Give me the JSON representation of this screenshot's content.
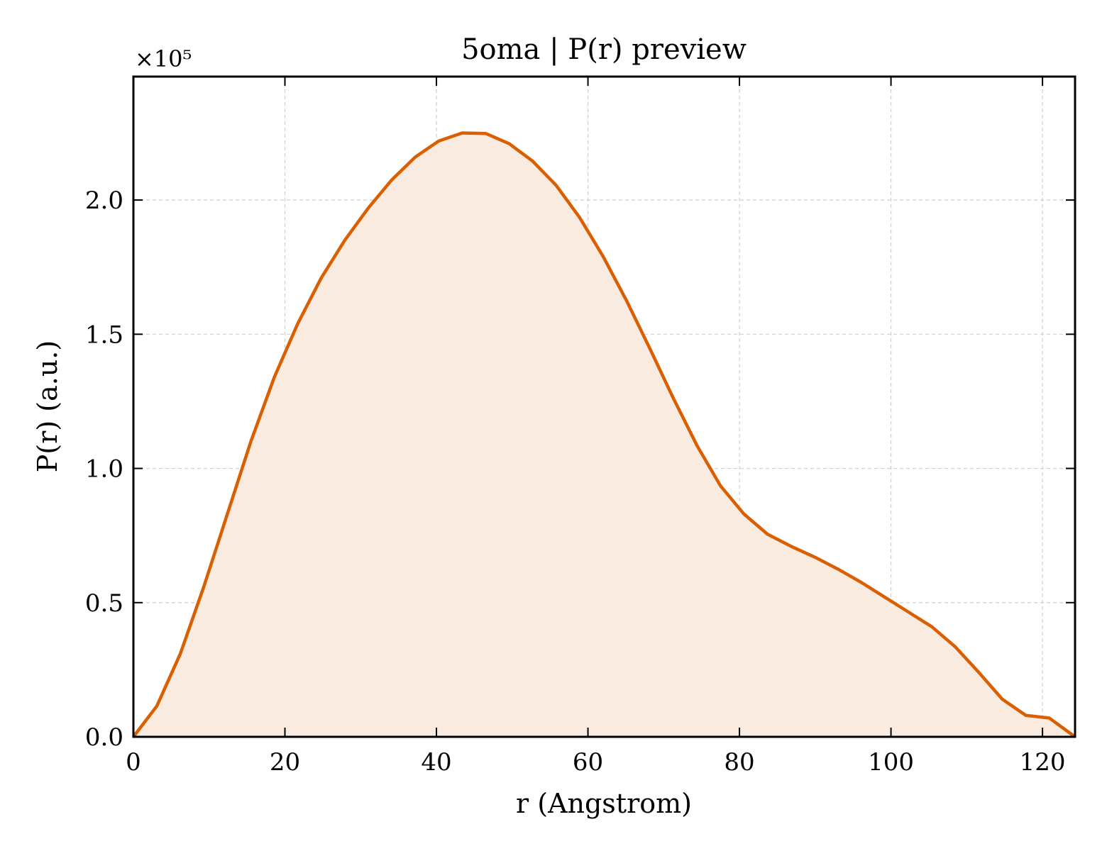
{
  "chart_data": {
    "type": "area",
    "title": "5oma | P(r) preview",
    "xlabel": "r (Angstrom)",
    "ylabel": "P(r) (a.u.)",
    "y_offset_label": "×10⁵",
    "xlim": [
      0,
      124.3
    ],
    "ylim": [
      0,
      2.46
    ],
    "y_scale_factor": 100000,
    "xticks": [
      0,
      20,
      40,
      60,
      80,
      100,
      120
    ],
    "xtick_labels": [
      "0",
      "20",
      "40",
      "60",
      "80",
      "100",
      "120"
    ],
    "yticks": [
      0,
      0.5,
      1.0,
      1.5,
      2.0
    ],
    "ytick_labels": [
      "0.0",
      "0.5",
      "1.0",
      "1.5",
      "2.0"
    ],
    "grid": true,
    "line_color": "#d95f02",
    "fill_color": "#f9ebe0",
    "series": [
      {
        "x": [
          0,
          3.1,
          6.2,
          9.3,
          12.4,
          15.5,
          18.6,
          21.7,
          24.8,
          27.9,
          31.0,
          34.1,
          37.2,
          40.3,
          43.4,
          46.5,
          49.6,
          52.7,
          55.8,
          58.9,
          62.0,
          65.1,
          68.2,
          71.3,
          74.4,
          77.5,
          80.6,
          83.7,
          86.8,
          89.9,
          93.0,
          96.1,
          99.2,
          102.3,
          105.4,
          108.5,
          111.6,
          114.7,
          117.8,
          120.9,
          124.3
        ],
        "y": [
          0.0,
          0.115,
          0.31,
          0.56,
          0.83,
          1.1,
          1.34,
          1.54,
          1.71,
          1.85,
          1.97,
          2.075,
          2.16,
          2.22,
          2.25,
          2.248,
          2.21,
          2.145,
          2.055,
          1.935,
          1.79,
          1.625,
          1.445,
          1.26,
          1.085,
          0.935,
          0.83,
          0.755,
          0.71,
          0.67,
          0.625,
          0.575,
          0.52,
          0.465,
          0.41,
          0.335,
          0.24,
          0.14,
          0.08,
          0.07,
          0.0
        ]
      }
    ]
  }
}
